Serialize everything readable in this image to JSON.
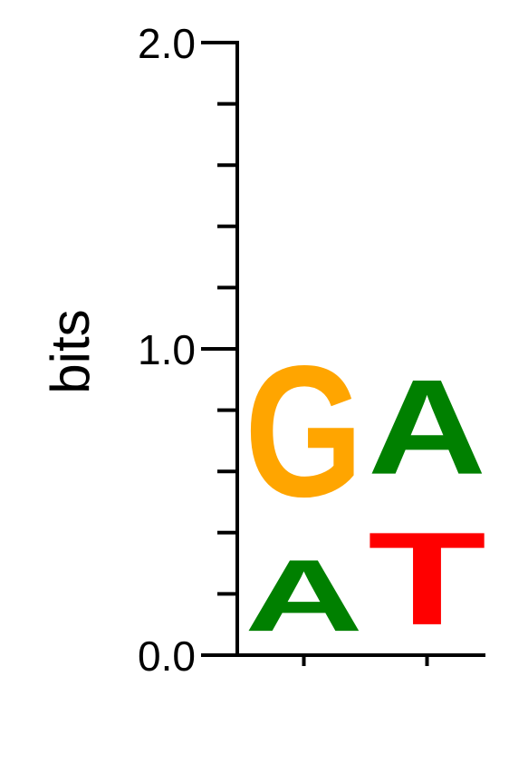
{
  "chart_data": {
    "type": "sequence-logo",
    "ylabel": "bits",
    "ylim": [
      0,
      2
    ],
    "y_ticks": [
      0,
      0.2,
      0.4,
      0.6,
      0.8,
      1.0,
      1.2,
      1.4,
      1.6,
      1.8,
      2.0
    ],
    "y_tick_labels": [
      {
        "value": 0,
        "label": "0.0"
      },
      {
        "value": 1,
        "label": "1.0"
      },
      {
        "value": 2,
        "label": "2.0"
      }
    ],
    "positions": [
      {
        "stack": [
          {
            "letter": "A",
            "bits": 0.38
          },
          {
            "letter": "G",
            "bits": 0.69
          }
        ]
      },
      {
        "stack": [
          {
            "letter": "T",
            "bits": 0.49
          },
          {
            "letter": "A",
            "bits": 0.5
          }
        ]
      }
    ],
    "colors": {
      "A": "#008000",
      "G": "#FFA500",
      "T": "#FF0000",
      "C": "#0000FF"
    }
  }
}
